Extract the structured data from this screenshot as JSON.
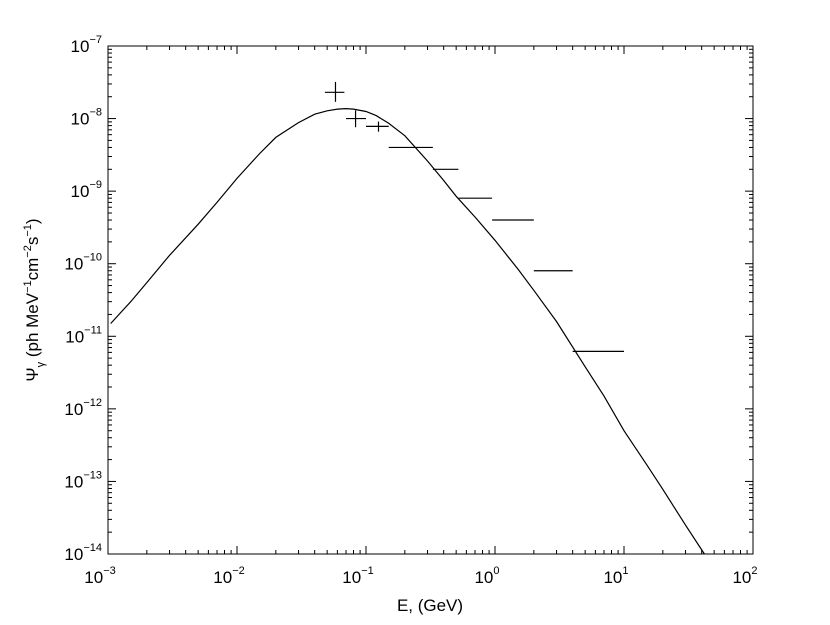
{
  "chart_data": {
    "type": "line",
    "xlabel": "E, (GeV)",
    "ylabel": {
      "psi": "Ψ",
      "gamma_sub": "γ",
      "units_open": " (ph MeV",
      "units_exp1": "−1",
      "units_cm": "cm",
      "units_exp2": "−2",
      "units_s": "s",
      "units_exp3": "−1",
      "units_close": ")"
    },
    "x_scale": "log",
    "y_scale": "log",
    "xlim": [
      0.001,
      100
    ],
    "ylim": [
      1e-14,
      1e-07
    ],
    "grid": false,
    "x_tick_labels": [
      {
        "base": "10",
        "exp": "−3"
      },
      {
        "base": "10",
        "exp": "−2"
      },
      {
        "base": "10",
        "exp": "−1"
      },
      {
        "base": "10",
        "exp": "0"
      },
      {
        "base": "10",
        "exp": "1"
      },
      {
        "base": "10",
        "exp": "2"
      }
    ],
    "y_tick_labels": [
      {
        "base": "10",
        "exp": "−14"
      },
      {
        "base": "10",
        "exp": "−13"
      },
      {
        "base": "10",
        "exp": "−12"
      },
      {
        "base": "10",
        "exp": "−11"
      },
      {
        "base": "10",
        "exp": "−10"
      },
      {
        "base": "10",
        "exp": "−9"
      },
      {
        "base": "10",
        "exp": "−8"
      },
      {
        "base": "10",
        "exp": "−7"
      }
    ],
    "model_curve": {
      "x": [
        0.00105,
        0.0015,
        0.002,
        0.003,
        0.005,
        0.007,
        0.01,
        0.015,
        0.02,
        0.03,
        0.04,
        0.05,
        0.06,
        0.07,
        0.08,
        0.1,
        0.12,
        0.15,
        0.2,
        0.3,
        0.4,
        0.5,
        0.7,
        1.0,
        1.5,
        2.0,
        3.0,
        5.0,
        7.0,
        10.0,
        15.0,
        20.0,
        30.0,
        42.0
      ],
      "y": [
        1.5e-11,
        3e-11,
        5.5e-11,
        1.3e-10,
        3.5e-10,
        7e-10,
        1.5e-09,
        3.3e-09,
        5.5e-09,
        8.8e-09,
        1.15e-08,
        1.28e-08,
        1.35e-08,
        1.37e-08,
        1.35e-08,
        1.25e-08,
        1.1e-08,
        8.6e-09,
        5.8e-09,
        2.6e-09,
        1.4e-09,
        8.5e-10,
        4.4e-10,
        2.1e-10,
        8.5e-11,
        4.3e-11,
        1.6e-11,
        3.8e-12,
        1.5e-12,
        5e-13,
        1.7e-13,
        7.8e-14,
        2.5e-14,
        6.5e-15
      ]
    },
    "data_points": [
      {
        "x": 0.058,
        "x_lo": 0.048,
        "x_hi": 0.068,
        "y": 2.3e-08,
        "y_lo": 1.7e-08,
        "y_hi": 3.2e-08
      },
      {
        "x": 0.083,
        "x_lo": 0.07,
        "x_hi": 0.1,
        "y": 1e-08,
        "y_lo": 7.6e-09,
        "y_hi": 1.3e-08
      },
      {
        "x": 0.125,
        "x_lo": 0.1,
        "x_hi": 0.15,
        "y": 7.8e-09,
        "y_lo": 6.6e-09,
        "y_hi": 9.1e-09
      },
      {
        "x": 0.22,
        "x_lo": 0.15,
        "x_hi": 0.33,
        "y": 4e-09
      },
      {
        "x": 0.4,
        "x_lo": 0.33,
        "x_hi": 0.52,
        "y": 2e-09
      },
      {
        "x": 0.7,
        "x_lo": 0.52,
        "x_hi": 0.95,
        "y": 8e-10
      },
      {
        "x": 1.4,
        "x_lo": 0.95,
        "x_hi": 2.0,
        "y": 4e-10
      },
      {
        "x": 2.8,
        "x_lo": 2.0,
        "x_hi": 4.0,
        "y": 8e-11
      },
      {
        "x": 6.5,
        "x_lo": 4.0,
        "x_hi": 10.0,
        "y": 6.2e-12
      }
    ]
  }
}
